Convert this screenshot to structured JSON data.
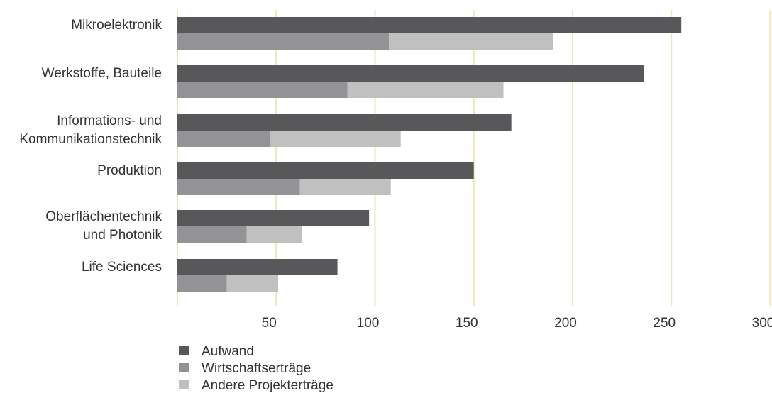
{
  "chart_data": {
    "type": "bar",
    "orientation": "horizontal",
    "stacked_second_row": true,
    "categories": [
      "Mikroelektronik",
      "Werkstoffe, Bauteile",
      "Informations- und Kommunikationstechnik",
      "Produktion",
      "Oberflächentechnik und Photonik",
      "Life Sciences"
    ],
    "category_label_lines": [
      [
        "Mikroelektronik"
      ],
      [
        "Werkstoffe, Bauteile"
      ],
      [
        "Informations- und",
        "Kommunikationstechnik"
      ],
      [
        "Produktion"
      ],
      [
        "Oberflächentechnik",
        "und Photonik"
      ],
      [
        "Life Sciences"
      ]
    ],
    "series": [
      {
        "name": "Aufwand",
        "values": [
          255,
          236,
          169,
          150,
          97,
          81
        ],
        "color": "#58585a"
      },
      {
        "name": "Wirtschaftserträge",
        "values": [
          107,
          86,
          47,
          62,
          35,
          25
        ],
        "color": "#939395"
      },
      {
        "name": "Andere Projekterträge",
        "values": [
          83,
          79,
          66,
          46,
          28,
          26
        ],
        "color": "#c0c0c0"
      }
    ],
    "xlim": [
      0,
      300
    ],
    "xticks": [
      50,
      100,
      150,
      200,
      250,
      300
    ],
    "xtick_labels": [
      "50",
      "100",
      "150",
      "200",
      "250",
      "300"
    ],
    "grid": true,
    "grid_color": "#ede6b5",
    "legend_position": "bottom-left"
  }
}
